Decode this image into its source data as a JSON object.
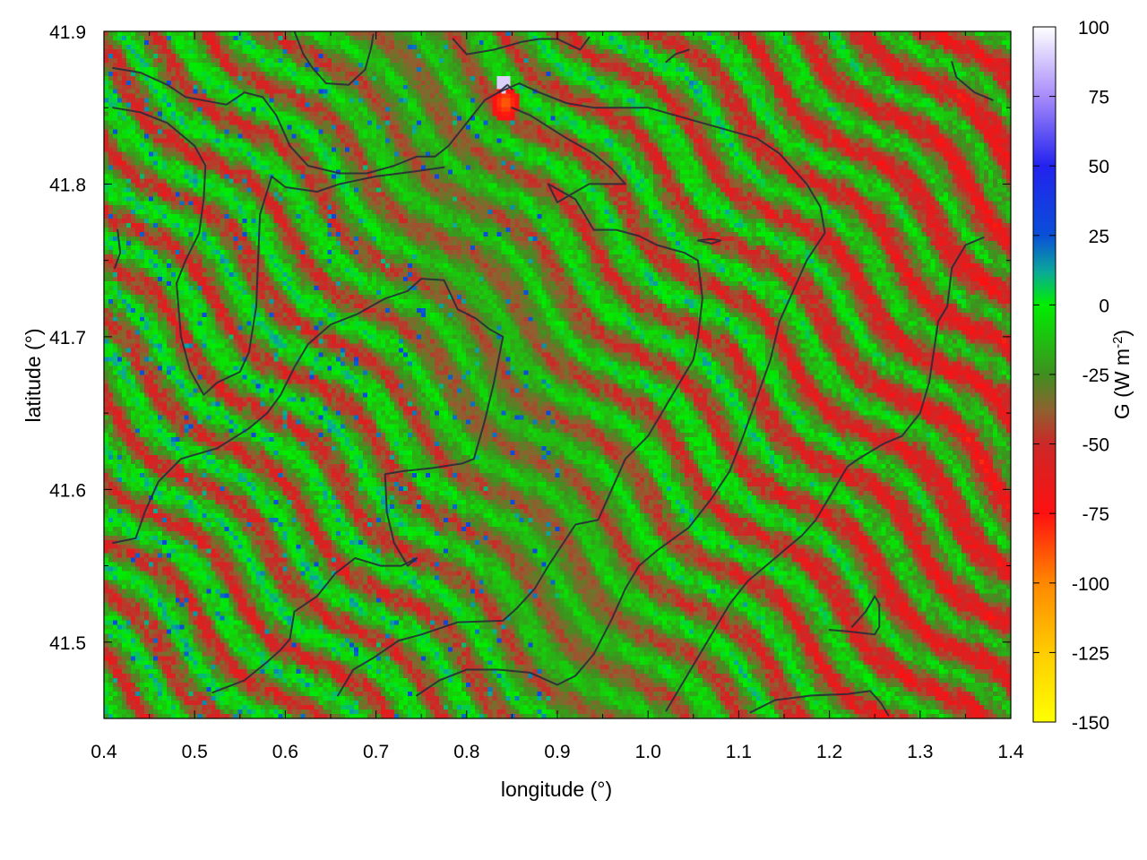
{
  "chart_data": {
    "type": "heatmap",
    "title": "",
    "xlabel": "longitude (°)",
    "ylabel": "latitude (°)",
    "xlim": [
      0.4,
      1.4
    ],
    "ylim": [
      41.45,
      41.9
    ],
    "xticks": [
      0.4,
      0.5,
      0.6,
      0.7,
      0.8,
      0.9,
      1.0,
      1.1,
      1.2,
      1.3,
      1.4
    ],
    "xtick_labels": [
      "0.4",
      "0.5",
      "0.6",
      "0.7",
      "0.8",
      "0.9",
      "1.0",
      "1.1",
      "1.2",
      "1.3",
      "1.4"
    ],
    "yticks": [
      41.5,
      41.6,
      41.7,
      41.8,
      41.9
    ],
    "ytick_labels": [
      "41.5",
      "41.6",
      "41.7",
      "41.8",
      "41.9"
    ],
    "colorbar": {
      "label": "G (W m-2)",
      "label_main": "G (W m",
      "label_sup": "-2",
      "label_close": ")",
      "range": [
        -150,
        100
      ],
      "ticks": [
        100,
        75,
        50,
        25,
        0,
        -25,
        -50,
        -75,
        -100,
        -125,
        -150
      ],
      "tick_labels": [
        "100",
        "75",
        "50",
        "25",
        "0",
        "-25",
        "-50",
        "-75",
        "-100",
        "-125",
        "-150"
      ],
      "palette": [
        {
          "value": 100,
          "color": "#ffffff"
        },
        {
          "value": 75,
          "color": "#a78bfa"
        },
        {
          "value": 50,
          "color": "#2222ee"
        },
        {
          "value": 25,
          "color": "#0a4fd8"
        },
        {
          "value": 12,
          "color": "#0aa89a"
        },
        {
          "value": 0,
          "color": "#00ee00"
        },
        {
          "value": -25,
          "color": "#3f8f20"
        },
        {
          "value": -38,
          "color": "#8f6030"
        },
        {
          "value": -50,
          "color": "#cc2828"
        },
        {
          "value": -75,
          "color": "#ff1010"
        },
        {
          "value": -100,
          "color": "#ff8800"
        },
        {
          "value": -125,
          "color": "#ffcc00"
        },
        {
          "value": -150,
          "color": "#ffff00"
        }
      ]
    },
    "contour_color": "#2a2a3a",
    "contours": [
      [
        [
          0.41,
          41.876
        ],
        [
          0.44,
          41.873
        ],
        [
          0.47,
          41.865
        ],
        [
          0.49,
          41.857
        ],
        [
          0.535,
          41.852
        ],
        [
          0.555,
          41.86
        ],
        [
          0.575,
          41.857
        ],
        [
          0.59,
          41.845
        ],
        [
          0.605,
          41.825
        ],
        [
          0.625,
          41.812
        ],
        [
          0.66,
          41.807
        ],
        [
          0.69,
          41.807
        ],
        [
          0.72,
          41.812
        ],
        [
          0.745,
          41.818
        ],
        [
          0.765,
          41.818
        ],
        [
          0.78,
          41.825
        ],
        [
          0.8,
          41.84
        ],
        [
          0.82,
          41.855
        ],
        [
          0.835,
          41.86
        ],
        [
          0.845,
          41.865
        ],
        [
          0.85,
          41.862
        ]
      ],
      [
        [
          0.41,
          41.85
        ],
        [
          0.44,
          41.847
        ],
        [
          0.47,
          41.84
        ],
        [
          0.5,
          41.825
        ],
        [
          0.512,
          41.812
        ],
        [
          0.51,
          41.79
        ],
        [
          0.505,
          41.768
        ],
        [
          0.49,
          41.75
        ],
        [
          0.48,
          41.735
        ],
        [
          0.485,
          41.7
        ],
        [
          0.495,
          41.678
        ],
        [
          0.51,
          41.662
        ],
        [
          0.525,
          41.67
        ],
        [
          0.55,
          41.677
        ],
        [
          0.56,
          41.69
        ],
        [
          0.568,
          41.72
        ],
        [
          0.57,
          41.75
        ],
        [
          0.572,
          41.78
        ],
        [
          0.585,
          41.805
        ],
        [
          0.6,
          41.798
        ],
        [
          0.635,
          41.795
        ],
        [
          0.66,
          41.8
        ],
        [
          0.7,
          41.805
        ],
        [
          0.74,
          41.808
        ],
        [
          0.775,
          41.811
        ]
      ],
      [
        [
          0.415,
          41.77
        ],
        [
          0.418,
          41.755
        ],
        [
          0.412,
          41.745
        ]
      ],
      [
        [
          0.41,
          41.565
        ],
        [
          0.435,
          41.568
        ],
        [
          0.445,
          41.585
        ],
        [
          0.46,
          41.605
        ],
        [
          0.485,
          41.62
        ],
        [
          0.525,
          41.627
        ],
        [
          0.56,
          41.64
        ],
        [
          0.58,
          41.65
        ],
        [
          0.595,
          41.662
        ],
        [
          0.61,
          41.68
        ],
        [
          0.625,
          41.695
        ],
        [
          0.65,
          41.708
        ],
        [
          0.68,
          41.715
        ],
        [
          0.71,
          41.725
        ],
        [
          0.735,
          41.73
        ],
        [
          0.75,
          41.738
        ],
        [
          0.775,
          41.737
        ],
        [
          0.79,
          41.718
        ],
        [
          0.81,
          41.712
        ],
        [
          0.825,
          41.705
        ],
        [
          0.84,
          41.7
        ],
        [
          0.83,
          41.67
        ],
        [
          0.82,
          41.645
        ],
        [
          0.808,
          41.62
        ],
        [
          0.795,
          41.617
        ],
        [
          0.762,
          41.614
        ],
        [
          0.73,
          41.612
        ],
        [
          0.71,
          41.61
        ],
        [
          0.712,
          41.585
        ],
        [
          0.72,
          41.565
        ],
        [
          0.735,
          41.55
        ],
        [
          0.745,
          41.555
        ],
        [
          0.728,
          41.55
        ],
        [
          0.705,
          41.55
        ],
        [
          0.677,
          41.555
        ],
        [
          0.655,
          41.545
        ],
        [
          0.635,
          41.53
        ],
        [
          0.61,
          41.52
        ],
        [
          0.605,
          41.502
        ],
        [
          0.595,
          41.495
        ],
        [
          0.58,
          41.487
        ],
        [
          0.555,
          41.475
        ],
        [
          0.52,
          41.467
        ]
      ],
      [
        [
          0.658,
          41.465
        ],
        [
          0.675,
          41.482
        ],
        [
          0.698,
          41.49
        ],
        [
          0.725,
          41.501
        ],
        [
          0.75,
          41.505
        ],
        [
          0.79,
          41.513
        ],
        [
          0.84,
          41.514
        ],
        [
          0.855,
          41.522
        ],
        [
          0.875,
          41.535
        ],
        [
          0.89,
          41.55
        ],
        [
          0.92,
          41.577
        ],
        [
          0.945,
          41.58
        ],
        [
          0.96,
          41.6
        ],
        [
          0.975,
          41.62
        ],
        [
          0.99,
          41.629
        ],
        [
          1.0,
          41.635
        ],
        [
          1.02,
          41.655
        ],
        [
          1.035,
          41.67
        ],
        [
          1.05,
          41.685
        ],
        [
          1.055,
          41.7
        ],
        [
          1.06,
          41.725
        ],
        [
          1.055,
          41.75
        ],
        [
          1.04,
          41.755
        ],
        [
          1.01,
          41.76
        ],
        [
          0.99,
          41.766
        ],
        [
          0.965,
          41.77
        ],
        [
          0.94,
          41.77
        ],
        [
          0.92,
          41.79
        ],
        [
          0.89,
          41.8
        ],
        [
          0.9,
          41.788
        ],
        [
          0.935,
          41.8
        ],
        [
          0.975,
          41.8
        ],
        [
          0.96,
          41.81
        ],
        [
          0.94,
          41.82
        ],
        [
          0.91,
          41.83
        ],
        [
          0.87,
          41.845
        ],
        [
          0.85,
          41.85
        ]
      ],
      [
        [
          0.745,
          41.465
        ],
        [
          0.77,
          41.475
        ],
        [
          0.8,
          41.482
        ],
        [
          0.835,
          41.482
        ],
        [
          0.87,
          41.48
        ],
        [
          0.9,
          41.472
        ],
        [
          0.92,
          41.478
        ],
        [
          0.94,
          41.492
        ],
        [
          0.96,
          41.515
        ],
        [
          0.975,
          41.535
        ],
        [
          0.99,
          41.55
        ],
        [
          1.01,
          41.56
        ],
        [
          1.045,
          41.575
        ],
        [
          1.07,
          41.594
        ],
        [
          1.09,
          41.612
        ],
        [
          1.105,
          41.635
        ],
        [
          1.12,
          41.66
        ],
        [
          1.135,
          41.685
        ],
        [
          1.145,
          41.71
        ],
        [
          1.16,
          41.73
        ],
        [
          1.175,
          41.75
        ],
        [
          1.195,
          41.768
        ],
        [
          1.19,
          41.785
        ],
        [
          1.175,
          41.8
        ],
        [
          1.16,
          41.81
        ],
        [
          1.145,
          41.82
        ],
        [
          1.12,
          41.83
        ],
        [
          1.09,
          41.835
        ],
        [
          1.06,
          41.84
        ],
        [
          1.03,
          41.845
        ],
        [
          1.0,
          41.85
        ],
        [
          0.97,
          41.85
        ],
        [
          0.94,
          41.85
        ],
        [
          0.91,
          41.853
        ],
        [
          0.88,
          41.86
        ],
        [
          0.858,
          41.866
        ],
        [
          0.835,
          41.86
        ]
      ],
      [
        [
          1.02,
          41.455
        ],
        [
          1.035,
          41.47
        ],
        [
          1.055,
          41.49
        ],
        [
          1.075,
          41.51
        ],
        [
          1.09,
          41.525
        ],
        [
          1.11,
          41.54
        ],
        [
          1.13,
          41.55
        ],
        [
          1.15,
          41.56
        ],
        [
          1.17,
          41.57
        ],
        [
          1.185,
          41.58
        ],
        [
          1.2,
          41.595
        ],
        [
          1.21,
          41.605
        ],
        [
          1.22,
          41.615
        ],
        [
          1.232,
          41.62
        ],
        [
          1.26,
          41.63
        ],
        [
          1.28,
          41.635
        ],
        [
          1.3,
          41.65
        ],
        [
          1.31,
          41.67
        ],
        [
          1.315,
          41.69
        ],
        [
          1.32,
          41.71
        ],
        [
          1.33,
          41.72
        ],
        [
          1.335,
          41.745
        ],
        [
          1.35,
          41.76
        ],
        [
          1.37,
          41.765
        ]
      ],
      [
        [
          1.2,
          41.508
        ],
        [
          1.22,
          41.507
        ],
        [
          1.25,
          41.505
        ],
        [
          1.255,
          41.51
        ],
        [
          1.255,
          41.525
        ],
        [
          1.25,
          41.53
        ],
        [
          1.24,
          41.52
        ],
        [
          1.225,
          41.51
        ]
      ],
      [
        [
          1.113,
          41.454
        ],
        [
          1.14,
          41.462
        ],
        [
          1.18,
          41.465
        ],
        [
          1.22,
          41.466
        ],
        [
          1.245,
          41.468
        ],
        [
          1.257,
          41.46
        ],
        [
          1.265,
          41.452
        ]
      ],
      [
        [
          1.055,
          41.763
        ],
        [
          1.07,
          41.764
        ],
        [
          1.08,
          41.763
        ],
        [
          1.07,
          41.761
        ],
        [
          1.055,
          41.763
        ]
      ],
      [
        [
          0.61,
          41.9
        ],
        [
          0.62,
          41.885
        ],
        [
          0.63,
          41.876
        ],
        [
          0.645,
          41.866
        ],
        [
          0.67,
          41.865
        ],
        [
          0.688,
          41.875
        ],
        [
          0.695,
          41.89
        ],
        [
          0.697,
          41.898
        ]
      ],
      [
        [
          0.785,
          41.895
        ],
        [
          0.8,
          41.885
        ],
        [
          0.83,
          41.888
        ],
        [
          0.86,
          41.893
        ],
        [
          0.88,
          41.895
        ],
        [
          0.9,
          41.895
        ],
        [
          0.925,
          41.888
        ],
        [
          0.935,
          41.896
        ]
      ],
      [
        [
          1.02,
          41.88
        ],
        [
          1.03,
          41.885
        ],
        [
          1.045,
          41.888
        ]
      ],
      [
        [
          1.335,
          41.88
        ],
        [
          1.34,
          41.87
        ],
        [
          1.36,
          41.86
        ],
        [
          1.38,
          41.855
        ]
      ]
    ]
  }
}
